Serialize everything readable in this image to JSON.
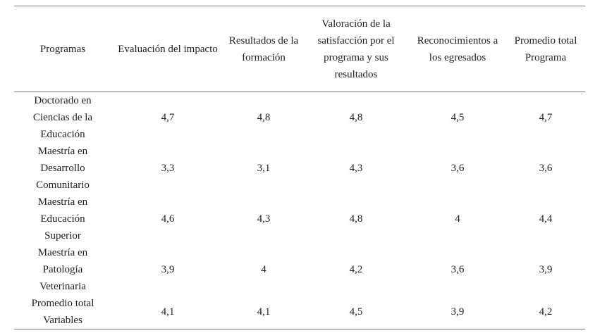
{
  "table": {
    "header": [
      "Programas",
      "Evaluación del impacto",
      "Resultados de la formación",
      "Valoración de la satisfacción por el programa y sus resultados",
      "Reconocimientos a los egresados",
      "Promedio total Programa"
    ],
    "rows": [
      [
        "Doctorado en Ciencias de la Educación",
        "4,7",
        "4,8",
        "4,8",
        "4,5",
        "4,7"
      ],
      [
        "Maestría en Desarrollo Comunitario",
        "3,3",
        "3,1",
        "4,3",
        "3,6",
        "3,6"
      ],
      [
        "Maestría en Educación Superior",
        "4,6",
        "4,3",
        "4,8",
        "4",
        "4,4"
      ],
      [
        "Maestría en Patología Veterinaria",
        "3,9",
        "4",
        "4,2",
        "3,6",
        "3,9"
      ],
      [
        "Promedio total Variables",
        "4,1",
        "4,1",
        "4,5",
        "3,9",
        "4,2"
      ]
    ]
  }
}
